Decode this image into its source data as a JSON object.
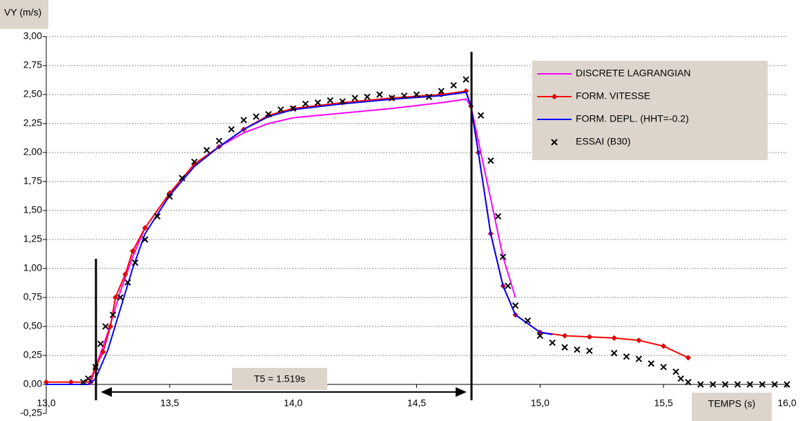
{
  "chart_data": {
    "type": "line",
    "xlabel": "TEMPS (s)",
    "ylabel": "VY (m/s)",
    "annotation": "T5 = 1.519s",
    "xlim": [
      13.0,
      16.0
    ],
    "xticks": [
      {
        "value": 13.0,
        "label": "13,0"
      },
      {
        "value": 13.5,
        "label": "13,5"
      },
      {
        "value": 14.0,
        "label": "14,0"
      },
      {
        "value": 14.5,
        "label": "14,5"
      },
      {
        "value": 15.0,
        "label": "15,0"
      },
      {
        "value": 15.5,
        "label": "15,5"
      },
      {
        "value": 16.0,
        "label": "16,0"
      }
    ],
    "ylim": [
      -0.25,
      3.0
    ],
    "yticks": [
      {
        "value": -0.25,
        "label": "-0,25"
      },
      {
        "value": 0,
        "label": "0,00"
      },
      {
        "value": 0.25,
        "label": "0,25"
      },
      {
        "value": 0.5,
        "label": "0,50"
      },
      {
        "value": 0.75,
        "label": "0,75"
      },
      {
        "value": 1.0,
        "label": "1,00"
      },
      {
        "value": 1.25,
        "label": "1,25"
      },
      {
        "value": 1.5,
        "label": "1,50"
      },
      {
        "value": 1.75,
        "label": "1,75"
      },
      {
        "value": 2.0,
        "label": "2,00"
      },
      {
        "value": 2.25,
        "label": "2,25"
      },
      {
        "value": 2.5,
        "label": "2,50"
      },
      {
        "value": 2.75,
        "label": "2,75"
      },
      {
        "value": 3.0,
        "label": "3,00"
      }
    ],
    "grid": true,
    "legend": "upper right",
    "series": [
      {
        "name": "DISCRETE LAGRANGIAN",
        "color": "#ff00ff",
        "line": true,
        "marker": "none",
        "x": [
          13.0,
          13.1,
          13.17,
          13.2,
          13.25,
          13.3,
          13.35,
          13.4,
          13.5,
          13.6,
          13.7,
          13.8,
          13.9,
          14.0,
          14.2,
          14.4,
          14.6,
          14.7,
          14.72,
          14.75,
          14.8,
          14.85,
          14.9
        ],
        "values": [
          0,
          0,
          0,
          0.15,
          0.45,
          0.8,
          1.1,
          1.35,
          1.65,
          1.9,
          2.05,
          2.17,
          2.25,
          2.3,
          2.34,
          2.38,
          2.43,
          2.46,
          2.4,
          2.1,
          1.6,
          1.1,
          0.75
        ]
      },
      {
        "name": "FORM. VITESSE",
        "color": "#ff0000",
        "line": true,
        "marker": "diamond",
        "x": [
          13.0,
          13.1,
          13.18,
          13.2,
          13.23,
          13.26,
          13.28,
          13.32,
          13.35,
          13.4,
          13.5,
          13.6,
          13.7,
          13.8,
          13.9,
          14.0,
          14.2,
          14.4,
          14.6,
          14.7,
          14.72,
          14.75,
          14.8,
          14.85,
          14.9,
          15.0,
          15.1,
          15.2,
          15.3,
          15.4,
          15.5,
          15.6
        ],
        "values": [
          0.02,
          0.02,
          0.02,
          0.15,
          0.28,
          0.5,
          0.75,
          0.95,
          1.15,
          1.35,
          1.65,
          1.9,
          2.05,
          2.2,
          2.32,
          2.38,
          2.43,
          2.47,
          2.5,
          2.53,
          2.4,
          2.0,
          1.3,
          0.85,
          0.6,
          0.45,
          0.42,
          0.41,
          0.4,
          0.38,
          0.33,
          0.23
        ]
      },
      {
        "name": "FORM. DEPL. (HHT=-0.2)",
        "color": "#0000ff",
        "line": true,
        "marker": "none",
        "x": [
          13.0,
          13.17,
          13.2,
          13.25,
          13.3,
          13.35,
          13.4,
          13.5,
          13.6,
          13.7,
          13.8,
          13.9,
          14.0,
          14.2,
          14.4,
          14.6,
          14.7,
          14.72,
          14.75,
          14.8,
          14.85,
          14.9,
          15.0,
          15.05
        ],
        "values": [
          0,
          0,
          0.05,
          0.3,
          0.65,
          1.0,
          1.3,
          1.63,
          1.88,
          2.05,
          2.2,
          2.31,
          2.37,
          2.42,
          2.46,
          2.49,
          2.52,
          2.4,
          2.0,
          1.3,
          0.85,
          0.6,
          0.45,
          0.43
        ]
      },
      {
        "name": "ESSAI (B30)",
        "color": "#000000",
        "line": false,
        "marker": "x",
        "x": [
          13.15,
          13.17,
          13.2,
          13.22,
          13.24,
          13.27,
          13.3,
          13.33,
          13.36,
          13.4,
          13.45,
          13.5,
          13.55,
          13.6,
          13.65,
          13.7,
          13.75,
          13.8,
          13.85,
          13.9,
          13.95,
          14.0,
          14.05,
          14.1,
          14.15,
          14.2,
          14.25,
          14.3,
          14.35,
          14.4,
          14.45,
          14.5,
          14.55,
          14.6,
          14.65,
          14.7,
          14.76,
          14.8,
          14.83,
          14.85,
          14.87,
          14.9,
          14.95,
          15.0,
          15.05,
          15.1,
          15.15,
          15.2,
          15.3,
          15.35,
          15.4,
          15.45,
          15.5,
          15.55,
          15.57,
          15.6,
          15.65,
          15.7,
          15.75,
          15.8,
          15.85,
          15.9,
          15.95,
          16.0
        ],
        "values": [
          0.02,
          0.05,
          0.15,
          0.35,
          0.5,
          0.6,
          0.75,
          0.88,
          1.05,
          1.25,
          1.45,
          1.62,
          1.78,
          1.92,
          2.02,
          2.1,
          2.2,
          2.28,
          2.31,
          2.33,
          2.37,
          2.38,
          2.42,
          2.43,
          2.45,
          2.44,
          2.47,
          2.48,
          2.5,
          2.47,
          2.49,
          2.5,
          2.48,
          2.53,
          2.58,
          2.63,
          2.32,
          1.93,
          1.45,
          1.1,
          0.85,
          0.68,
          0.55,
          0.42,
          0.36,
          0.32,
          0.3,
          0.29,
          0.27,
          0.24,
          0.22,
          0.18,
          0.15,
          0.11,
          0.05,
          0.02,
          0,
          0,
          0,
          0,
          0,
          0,
          0,
          0
        ]
      }
    ]
  }
}
